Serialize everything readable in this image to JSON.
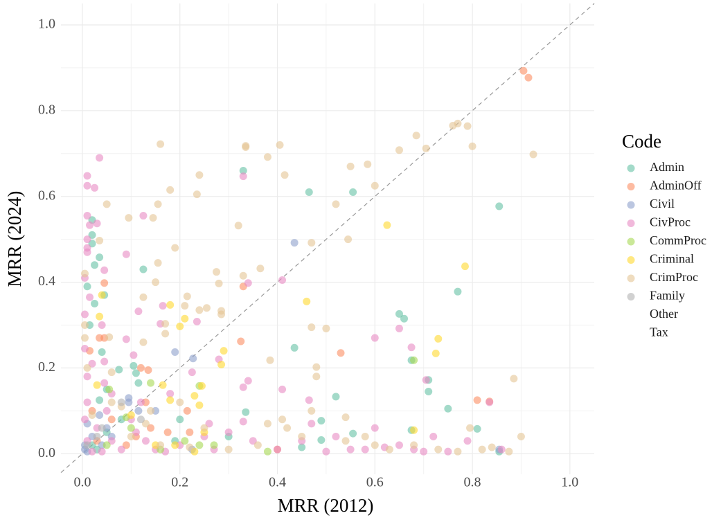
{
  "chart_data": {
    "type": "scatter",
    "xlabel": "MRR (2012)",
    "ylabel": "MRR (2024)",
    "legend_title": "Code",
    "xlim": [
      -0.044,
      1.05
    ],
    "ylim": [
      -0.048,
      1.05
    ],
    "xticks": [
      {
        "value": 0,
        "label": "0.0"
      },
      0.2,
      0.4,
      0.6,
      0.8,
      {
        "value": 1,
        "label": "1.0"
      }
    ],
    "yticks": [
      {
        "value": 0,
        "label": "0.0"
      },
      0.2,
      0.4,
      0.6,
      0.8,
      {
        "value": 1,
        "label": "1.0"
      }
    ],
    "grid": true,
    "minor_grid": true,
    "diagonal": true,
    "legend": "right",
    "opacity": 0.6,
    "series": [
      {
        "name": "Admin",
        "color": "#66c2a5",
        "x": [
          0.33,
          0.465,
          0.555,
          0.855,
          0.02,
          0.02,
          0.02,
          0.035,
          0.025,
          0.125,
          0.01,
          0.045,
          0.77,
          0.65,
          0.66,
          0.025,
          0.015,
          0.435,
          0.04,
          0.675,
          0.075,
          0.11,
          0.105,
          0.71,
          0.115,
          0.52,
          0.71,
          0.05,
          0.035,
          0.75,
          0.335,
          0.49,
          0.81,
          0.675,
          0.555,
          0.3,
          0.49,
          0.855,
          0.02,
          0.05,
          0.08,
          0.03,
          0.45,
          0.2,
          0.19
        ],
        "values": [
          0.66,
          0.61,
          0.61,
          0.577,
          0.545,
          0.51,
          0.49,
          0.458,
          0.44,
          0.43,
          0.39,
          0.37,
          0.378,
          0.326,
          0.315,
          0.35,
          0.3,
          0.247,
          0.237,
          0.218,
          0.196,
          0.188,
          0.205,
          0.172,
          0.165,
          0.133,
          0.145,
          0.15,
          0.125,
          0.105,
          0.097,
          0.077,
          0.058,
          0.055,
          0.047,
          0.04,
          0.032,
          0.005,
          0.02,
          0.05,
          0.08,
          0.01,
          0.015,
          0.08,
          0.03
        ]
      },
      {
        "name": "AdminOff",
        "color": "#fc8d62",
        "x": [
          0.905,
          0.915,
          0.33,
          0.045,
          0.325,
          0.53,
          0.045,
          0.035,
          0.135,
          0.12,
          0.81,
          0.835,
          0.215,
          0.13,
          0.06,
          0.14,
          0.11,
          0.02,
          0.03,
          0.09,
          0.175,
          0.22,
          0.4,
          0.015
        ],
        "values": [
          0.893,
          0.877,
          0.39,
          0.398,
          0.262,
          0.235,
          0.27,
          0.27,
          0.195,
          0.2,
          0.125,
          0.122,
          0.1,
          0.12,
          0.08,
          0.06,
          0.04,
          0.1,
          0.03,
          0.02,
          0.05,
          0.05,
          0.01,
          0.24
        ]
      },
      {
        "name": "Civil",
        "color": "#8da0cb",
        "x": [
          0.435,
          0.19,
          0.227,
          0.095,
          0.095,
          0.115,
          0.035,
          0.005,
          0.005,
          0.01,
          0.02,
          0.05,
          0.04,
          0.15,
          0.225,
          0.855,
          0.06,
          0.01
        ],
        "values": [
          0.492,
          0.237,
          0.222,
          0.13,
          0.12,
          0.1,
          0.09,
          0.02,
          0.01,
          0.005,
          0.04,
          0.06,
          0.02,
          0.1,
          0.01,
          0.01,
          0.04,
          0.07
        ]
      },
      {
        "name": "CivProc",
        "color": "#e78ac3",
        "x": [
          0.035,
          0.01,
          0.33,
          0.01,
          0.025,
          0.01,
          0.125,
          0.03,
          0.015,
          0.01,
          0.01,
          0.01,
          0.09,
          0.045,
          0.41,
          0.005,
          0.34,
          0.015,
          0.005,
          0.04,
          0.165,
          0.115,
          0.16,
          0.235,
          0.09,
          0.6,
          0.65,
          0.675,
          0.045,
          0.005,
          0.105,
          0.28,
          0.225,
          0.34,
          0.33,
          0.705,
          0.41,
          0.465,
          0.835,
          0.01,
          0.045,
          0.06,
          0.12,
          0.18,
          0.05,
          0.1,
          0.3,
          0.47,
          0.6,
          0.72,
          0.79,
          0.86,
          0.7,
          0.5,
          0.55,
          0.62,
          0.65,
          0.4,
          0.35,
          0.25,
          0.2,
          0.15,
          0.08,
          0.02,
          0.01,
          0.03,
          0.06,
          0.13,
          0.17,
          0.27,
          0.33,
          0.45,
          0.52,
          0.58,
          0.68,
          0.75,
          0.01,
          0.02,
          0.005,
          0.04,
          0.11,
          0.26
        ],
        "values": [
          0.69,
          0.648,
          0.647,
          0.625,
          0.62,
          0.555,
          0.555,
          0.537,
          0.533,
          0.5,
          0.48,
          0.47,
          0.465,
          0.428,
          0.405,
          0.41,
          0.398,
          0.365,
          0.325,
          0.3,
          0.345,
          0.332,
          0.303,
          0.308,
          0.267,
          0.27,
          0.292,
          0.248,
          0.215,
          0.245,
          0.23,
          0.22,
          0.19,
          0.17,
          0.155,
          0.172,
          0.15,
          0.125,
          0.12,
          0.18,
          0.165,
          0.14,
          0.12,
          0.14,
          0.1,
          0.08,
          0.05,
          0.07,
          0.06,
          0.04,
          0.03,
          0.01,
          0.005,
          0.005,
          0.01,
          0.015,
          0.02,
          0.01,
          0.03,
          0.04,
          0.02,
          0.01,
          0.01,
          0.005,
          0.03,
          0.06,
          0.03,
          0.03,
          0.005,
          0.01,
          0.075,
          0.03,
          0.04,
          0.01,
          0.01,
          0.005,
          0.12,
          0.21,
          0.08,
          0.005,
          0.05,
          0.07
        ]
      },
      {
        "name": "CommProc",
        "color": "#a6d854",
        "x": [
          0.68,
          0.24,
          0.055,
          0.14,
          0.21,
          0.24,
          0.05,
          0.1,
          0.38,
          0.27,
          0.16,
          0.09
        ],
        "values": [
          0.218,
          0.158,
          0.15,
          0.165,
          0.03,
          0.02,
          0.02,
          0.06,
          0.005,
          0.02,
          0.01,
          0.085
        ]
      },
      {
        "name": "Criminal",
        "color": "#ffd92f",
        "x": [
          0.625,
          0.785,
          0.46,
          0.18,
          0.21,
          0.2,
          0.73,
          0.29,
          0.725,
          0.285,
          0.245,
          0.23,
          0.24,
          0.18,
          0.165,
          0.68,
          0.25,
          0.19,
          0.1,
          0.03,
          0.04,
          0.035,
          0.23,
          0.15
        ],
        "values": [
          0.533,
          0.437,
          0.355,
          0.347,
          0.315,
          0.297,
          0.268,
          0.24,
          0.234,
          0.208,
          0.158,
          0.135,
          0.113,
          0.125,
          0.16,
          0.055,
          0.05,
          0.02,
          0.09,
          0.16,
          0.37,
          0.32,
          0.005,
          0.02
        ]
      },
      {
        "name": "CrimProc",
        "color": "#e5c494",
        "x": [
          0.16,
          0.335,
          0.335,
          0.405,
          0.76,
          0.77,
          0.79,
          0.685,
          0.8,
          0.705,
          0.65,
          0.925,
          0.38,
          0.585,
          0.55,
          0.415,
          0.24,
          0.6,
          0.18,
          0.235,
          0.05,
          0.155,
          0.52,
          0.095,
          0.145,
          0.32,
          0.545,
          0.035,
          0.47,
          0.19,
          0.365,
          0.275,
          0.33,
          0.155,
          0.005,
          0.15,
          0.28,
          0.125,
          0.215,
          0.21,
          0.24,
          0.255,
          0.285,
          0.285,
          0.17,
          0.47,
          0.5,
          0.17,
          0.005,
          0.055,
          0.125,
          0.385,
          0.48,
          0.48,
          0.885,
          0.06,
          0.2,
          0.47,
          0.14,
          0.38,
          0.41,
          0.54,
          0.795,
          0.82,
          0.875,
          0.9,
          0.54,
          0.6,
          0.68,
          0.77,
          0.3,
          0.25,
          0.1,
          0.02,
          0.13,
          0.06,
          0.16,
          0.45,
          0.36,
          0.22,
          0.08,
          0.42,
          0.58,
          0.63,
          0.73,
          0.84,
          0.005,
          0.01
        ],
        "values": [
          0.722,
          0.718,
          0.715,
          0.72,
          0.765,
          0.77,
          0.764,
          0.742,
          0.717,
          0.712,
          0.708,
          0.698,
          0.692,
          0.675,
          0.67,
          0.65,
          0.65,
          0.625,
          0.615,
          0.605,
          0.582,
          0.582,
          0.582,
          0.55,
          0.55,
          0.532,
          0.5,
          0.497,
          0.492,
          0.48,
          0.432,
          0.424,
          0.415,
          0.445,
          0.42,
          0.4,
          0.397,
          0.365,
          0.367,
          0.345,
          0.335,
          0.34,
          0.333,
          0.325,
          0.303,
          0.295,
          0.292,
          0.28,
          0.27,
          0.272,
          0.26,
          0.218,
          0.202,
          0.18,
          0.175,
          0.19,
          0.12,
          0.1,
          0.1,
          0.07,
          0.08,
          0.085,
          0.06,
          0.01,
          0.005,
          0.04,
          0.03,
          0.02,
          0.02,
          0.005,
          0.01,
          0.06,
          0.04,
          0.09,
          0.07,
          0.12,
          0.02,
          0.04,
          0.02,
          0.015,
          0.11,
          0.06,
          0.04,
          0.01,
          0.01,
          0.015,
          0.3,
          0.2
        ]
      },
      {
        "name": "Family",
        "color": "#b3b3b3",
        "x": [
          0.08,
          0.01,
          0.03,
          0.12,
          0.04
        ],
        "values": [
          0.12,
          0.02,
          0.04,
          0.08,
          0.06
        ]
      },
      {
        "name": "Other",
        "color": "#ffffff",
        "x": [],
        "values": []
      },
      {
        "name": "Tax",
        "color": "#ffffff",
        "x": [],
        "values": []
      }
    ]
  }
}
